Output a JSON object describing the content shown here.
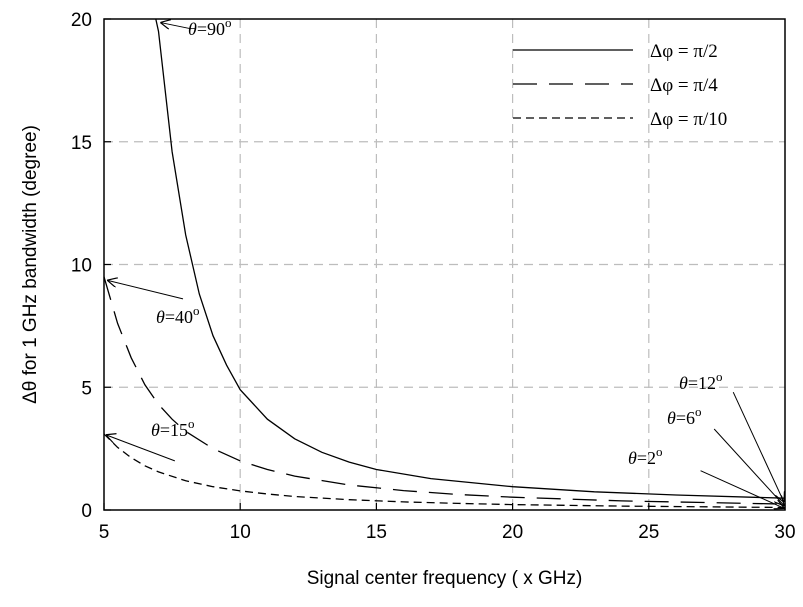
{
  "chart_data": {
    "type": "line",
    "xlabel": "Signal center frequency ( x GHz)",
    "ylabel": "Δθ for 1 GHz bandwidth (degree)",
    "xlim": [
      5,
      30
    ],
    "ylim": [
      0,
      20
    ],
    "xticks": [
      "5",
      "10",
      "15",
      "20",
      "25",
      "30"
    ],
    "yticks": [
      "0",
      "5",
      "10",
      "15",
      "20"
    ],
    "grid": "dashed",
    "legend": "top-right",
    "series": [
      {
        "name": "Δφ = π/2",
        "style": "solid",
        "x": [
          6.9,
          7,
          7.5,
          8,
          8.5,
          9,
          9.5,
          10,
          11,
          12,
          13,
          14,
          15,
          17,
          20,
          23,
          26,
          30
        ],
        "y": [
          20.0,
          19.5,
          14.6,
          11.2,
          8.8,
          7.1,
          5.9,
          4.9,
          3.7,
          2.9,
          2.35,
          1.95,
          1.65,
          1.28,
          0.95,
          0.74,
          0.61,
          0.48
        ]
      },
      {
        "name": "Δφ = π/4",
        "style": "long-dash",
        "x": [
          5,
          5.5,
          6,
          6.5,
          7,
          7.5,
          8,
          9,
          10,
          11,
          12,
          14,
          16,
          18,
          20,
          24,
          30
        ],
        "y": [
          9.5,
          7.6,
          6.2,
          5.1,
          4.3,
          3.7,
          3.2,
          2.5,
          2.0,
          1.65,
          1.38,
          1.02,
          0.79,
          0.63,
          0.52,
          0.37,
          0.24
        ]
      },
      {
        "name": "Δφ = π/10",
        "style": "short-dash",
        "x": [
          5,
          5.5,
          6,
          6.5,
          7,
          8,
          9,
          10,
          11,
          12,
          14,
          16,
          18,
          20,
          24,
          30
        ],
        "y": [
          3.1,
          2.55,
          2.13,
          1.8,
          1.55,
          1.19,
          0.95,
          0.78,
          0.65,
          0.55,
          0.42,
          0.33,
          0.27,
          0.22,
          0.16,
          0.1
        ]
      }
    ],
    "annotations": [
      {
        "theta": "θ",
        "text": "=90",
        "sup": "o",
        "arrow_from": [
          8.2,
          19.6
        ],
        "arrow_to": [
          7.1,
          19.85
        ]
      },
      {
        "theta": "θ",
        "text": "=40",
        "sup": "o",
        "arrow_from": [
          7.9,
          8.6
        ],
        "arrow_to": [
          5.15,
          9.35
        ]
      },
      {
        "theta": "θ",
        "text": "=15",
        "sup": "o",
        "arrow_from": [
          7.6,
          2.0
        ],
        "arrow_to": [
          5.1,
          3.05
        ]
      },
      {
        "theta": "θ",
        "text": "=12",
        "sup": "o",
        "arrow_from": [
          28.1,
          4.8
        ],
        "arrow_to": [
          29.95,
          0.35
        ]
      },
      {
        "theta": "θ",
        "text": "=6",
        "sup": "o",
        "arrow_from": [
          27.4,
          3.3
        ],
        "arrow_to": [
          29.95,
          0.2
        ]
      },
      {
        "theta": "θ",
        "text": "=2",
        "sup": "o",
        "arrow_from": [
          26.9,
          1.6
        ],
        "arrow_to": [
          29.95,
          0.08
        ]
      }
    ]
  }
}
